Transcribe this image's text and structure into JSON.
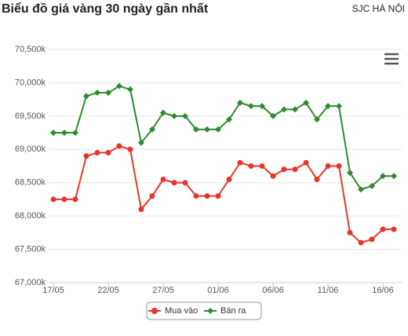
{
  "chart_data": {
    "type": "line",
    "title": "Biểu đồ giá vàng 30 ngày gần nhất",
    "subtitle": "SJC HÀ NỘI",
    "categories": [
      "17/05",
      null,
      null,
      null,
      null,
      "22/05",
      null,
      null,
      null,
      null,
      "27/05",
      null,
      null,
      null,
      null,
      "01/06",
      null,
      null,
      null,
      null,
      "06/06",
      null,
      null,
      null,
      null,
      "11/06",
      null,
      null,
      null,
      null,
      "16/06",
      null
    ],
    "series": [
      {
        "name": "Mua vào",
        "color": "#e8352a",
        "values": [
          68250,
          68250,
          68250,
          68900,
          68950,
          68950,
          69050,
          69000,
          68100,
          68300,
          68550,
          68500,
          68500,
          68300,
          68300,
          68300,
          68550,
          68800,
          68750,
          68750,
          68600,
          68700,
          68700,
          68800,
          68550,
          68750,
          68750,
          67750,
          67600,
          67650,
          67800,
          67800
        ]
      },
      {
        "name": "Bán ra",
        "color": "#2e8a2e",
        "values": [
          69250,
          69250,
          69250,
          69800,
          69850,
          69850,
          69950,
          69900,
          69100,
          69300,
          69550,
          69500,
          69500,
          69300,
          69300,
          69300,
          69450,
          69700,
          69650,
          69650,
          69500,
          69600,
          69600,
          69700,
          69450,
          69650,
          69650,
          68650,
          68400,
          68450,
          68600,
          68600
        ]
      }
    ],
    "ylim": [
      67000,
      70500
    ],
    "yticks": [
      {
        "value": 67000,
        "label": "67,000k"
      },
      {
        "value": 67500,
        "label": "67,500k"
      },
      {
        "value": 68000,
        "label": "68,000k"
      },
      {
        "value": 68500,
        "label": "68,500k"
      },
      {
        "value": 69000,
        "label": "69,000k"
      },
      {
        "value": 69500,
        "label": "69,500k"
      },
      {
        "value": 70000,
        "label": "70,000k"
      },
      {
        "value": 70500,
        "label": "70,500k"
      }
    ],
    "grid": true
  }
}
